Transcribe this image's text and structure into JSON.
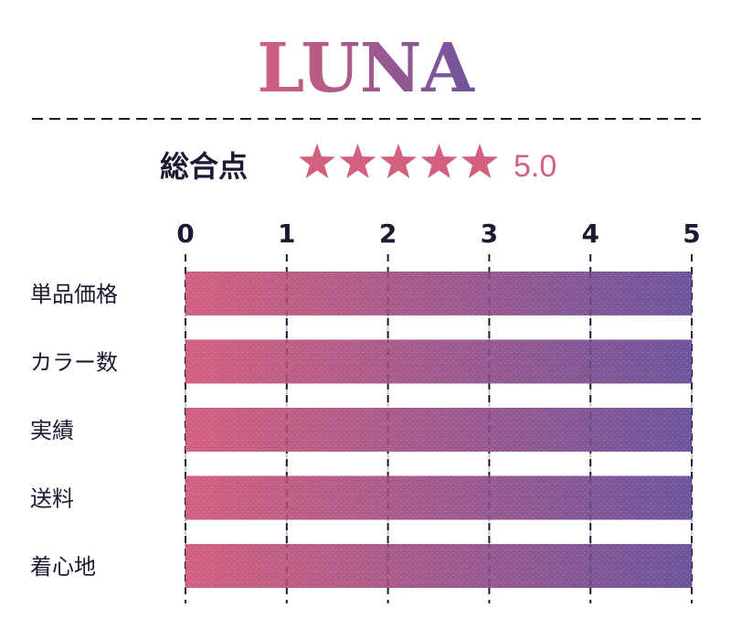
{
  "title": "LUNA",
  "overall": {
    "label": "総合点",
    "rating": 5,
    "max_stars": 5,
    "score_text": "5.0",
    "star_icon": "star-icon"
  },
  "colors": {
    "gradient_start": "#d3607f",
    "gradient_end": "#6e549c",
    "text": "#1b1a33",
    "star": "#d3607f",
    "grid": "#1b1a33"
  },
  "chart_data": {
    "type": "bar",
    "orientation": "horizontal",
    "categories": [
      "単品価格",
      "カラー数",
      "実績",
      "送料",
      "着心地"
    ],
    "values": [
      5,
      5,
      5,
      5,
      5
    ],
    "xlim": [
      0,
      5
    ],
    "xticks": [
      "0",
      "1",
      "2",
      "3",
      "4",
      "5"
    ],
    "grid": true,
    "axis_position": "top"
  }
}
